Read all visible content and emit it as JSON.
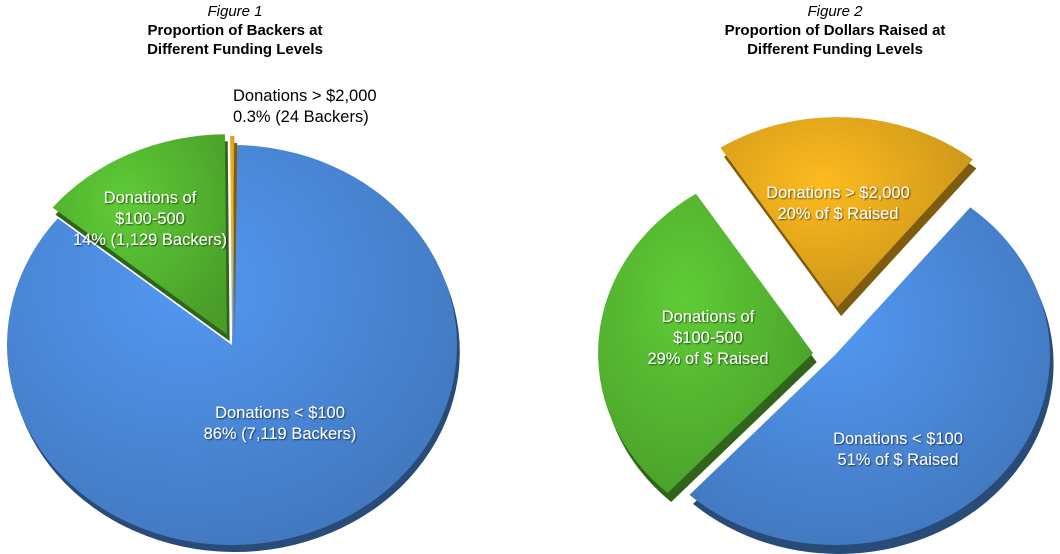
{
  "chart_data": [
    {
      "type": "pie",
      "figure_number": "Figure 1",
      "title": "Proportion of Backers at\nDifferent Funding Levels",
      "slices": [
        {
          "name": "Donations < $100",
          "value": 86,
          "label_lines": [
            "Donations < $100",
            "86% (7,119 Backers)"
          ],
          "color": "#4a88d8"
        },
        {
          "name": "Donations of $100-500",
          "value": 14,
          "label_lines": [
            "Donations of",
            "$100-500",
            "14% (1,129 Backers)"
          ],
          "color": "#55b630"
        },
        {
          "name": "Donations > $2,000",
          "value": 0.3,
          "label_lines": [
            "Donations > $2,000",
            "0.3% (24 Backers)"
          ],
          "color": "#e3a71c"
        }
      ]
    },
    {
      "type": "pie",
      "figure_number": "Figure 2",
      "title": "Proportion of Dollars Raised at\nDifferent Funding Levels",
      "slices": [
        {
          "name": "Donations < $100",
          "value": 51,
          "label_lines": [
            "Donations < $100",
            "51% of $ Raised"
          ],
          "color": "#4a88d8"
        },
        {
          "name": "Donations of $100-500",
          "value": 29,
          "label_lines": [
            "Donations of",
            "$100-500",
            "29% of $ Raised"
          ],
          "color": "#55b630"
        },
        {
          "name": "Donations > $2,000",
          "value": 20,
          "label_lines": [
            "Donations > $2,000",
            "20% of $ Raised"
          ],
          "color": "#e3a71c"
        }
      ]
    }
  ]
}
